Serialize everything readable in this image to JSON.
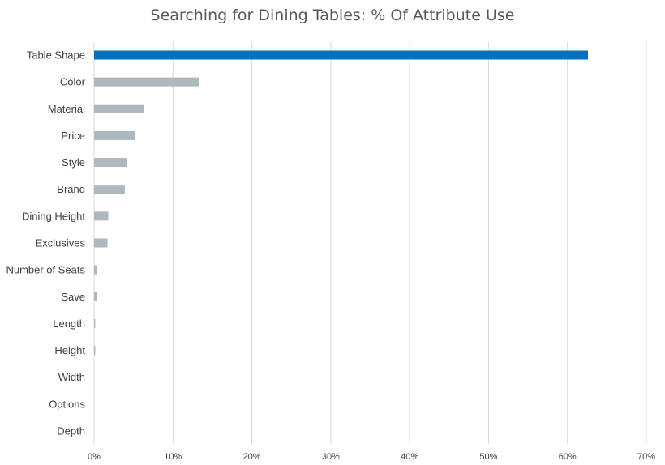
{
  "chart_data": {
    "type": "bar",
    "orientation": "horizontal",
    "title": "Searching for Dining Tables: % Of Attribute Use",
    "categories": [
      "Table Shape",
      "Color",
      "Material",
      "Price",
      "Style",
      "Brand",
      "Dining Height",
      "Exclusives",
      "Number of Seats",
      "Save",
      "Length",
      "Height",
      "Width",
      "Options",
      "Depth"
    ],
    "values": [
      62.6,
      13.3,
      6.3,
      5.2,
      4.2,
      3.9,
      1.8,
      1.7,
      0.4,
      0.35,
      0.15,
      0.15,
      0,
      0,
      0
    ],
    "xlim": [
      0,
      70
    ],
    "xticks": [
      "0%",
      "10%",
      "20%",
      "30%",
      "40%",
      "50%",
      "60%",
      "70%"
    ],
    "xtick_values": [
      0,
      10,
      20,
      30,
      40,
      50,
      60,
      70
    ],
    "grid": true,
    "colors": {
      "highlight": "#0070c0",
      "default": "#aeb8bf",
      "grid": "#d9d9d9"
    }
  }
}
